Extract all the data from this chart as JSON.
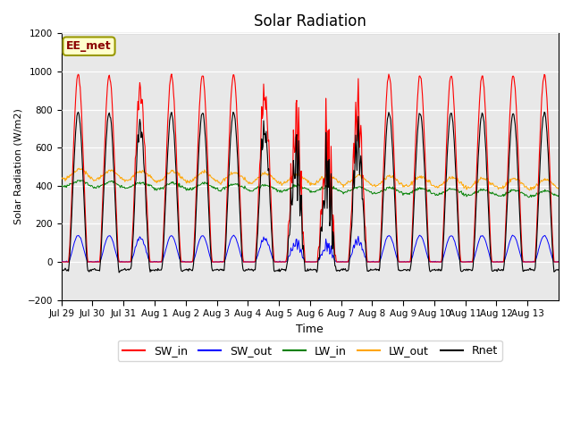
{
  "title": "Solar Radiation",
  "ylabel": "Solar Radiation (W/m2)",
  "xlabel": "Time",
  "ylim": [
    -200,
    1200
  ],
  "yticks": [
    -200,
    0,
    200,
    400,
    600,
    800,
    1000,
    1200
  ],
  "xtick_labels": [
    "Jul 29",
    "Jul 30",
    "Jul 31",
    "Aug 1",
    "Aug 2",
    "Aug 3",
    "Aug 4",
    "Aug 5",
    "Aug 6",
    "Aug 7",
    "Aug 8",
    "Aug 9",
    "Aug 10",
    "Aug 11",
    "Aug 12",
    "Aug 13"
  ],
  "annotation_text": "EE_met",
  "legend_labels": [
    "SW_in",
    "SW_out",
    "LW_in",
    "LW_out",
    "Rnet"
  ],
  "colors": [
    "red",
    "blue",
    "green",
    "orange",
    "black"
  ],
  "plot_bg": "#e8e8e8",
  "n_days": 16,
  "title_fontsize": 12,
  "legend_fontsize": 9,
  "tick_fontsize": 7.5
}
